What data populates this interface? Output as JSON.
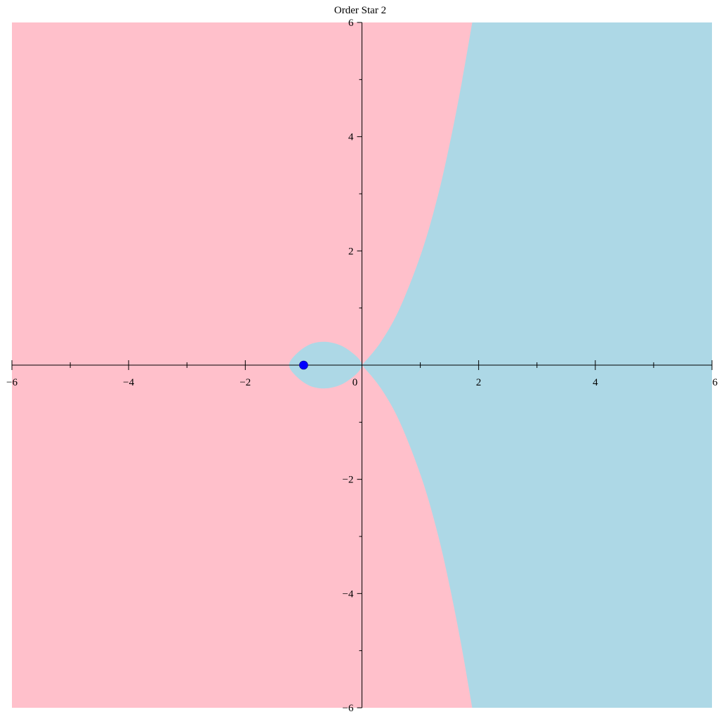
{
  "chart_data": {
    "type": "area",
    "title": "Order Star 2",
    "xlabel": "",
    "ylabel": "",
    "xlim": [
      -6,
      6
    ],
    "ylim": [
      -6,
      6
    ],
    "x_major_ticks": [
      -6,
      -4,
      -2,
      0,
      2,
      4,
      6
    ],
    "y_major_ticks": [
      -6,
      -4,
      -2,
      2,
      4,
      6
    ],
    "x_tick_labels": [
      "−6",
      "−4",
      "−2",
      "0",
      "2",
      "4",
      "6"
    ],
    "y_tick_labels": [
      "−6",
      "−4",
      "−2",
      "2",
      "4",
      "6"
    ],
    "minor_tick_step": 1,
    "grid": false,
    "regions": [
      {
        "name": "",
        "color": "#ffc0cb"
      },
      {
        "name": "",
        "color": "#add8e6"
      }
    ],
    "boundary_curves": [
      {
        "name": "",
        "points": [
          [
            0,
            0
          ],
          [
            0.32,
            0.4
          ],
          [
            0.65,
            1
          ],
          [
            1.03,
            2
          ],
          [
            1.31,
            3
          ],
          [
            1.53,
            4
          ],
          [
            1.72,
            5
          ],
          [
            1.89,
            6
          ]
        ]
      },
      {
        "name": "",
        "points": [
          [
            0,
            0
          ],
          [
            0.32,
            -0.4
          ],
          [
            0.65,
            -1
          ],
          [
            1.03,
            -2
          ],
          [
            1.31,
            -3
          ],
          [
            1.53,
            -4
          ],
          [
            1.72,
            -5
          ],
          [
            1.89,
            -6
          ]
        ]
      }
    ],
    "loop_curve": {
      "name": "",
      "points": [
        [
          0,
          0
        ],
        [
          -0.25,
          0.28
        ],
        [
          -0.55,
          0.4
        ],
        [
          -0.85,
          0.38
        ],
        [
          -1.1,
          0.22
        ],
        [
          -1.25,
          0
        ],
        [
          -1.1,
          -0.22
        ],
        [
          -0.85,
          -0.38
        ],
        [
          -0.55,
          -0.4
        ],
        [
          -0.25,
          -0.28
        ],
        [
          0,
          0
        ]
      ]
    },
    "points": [
      {
        "name": "",
        "x": -1,
        "y": 0,
        "color": "#0000ff"
      }
    ],
    "axis_color": "#000000"
  }
}
